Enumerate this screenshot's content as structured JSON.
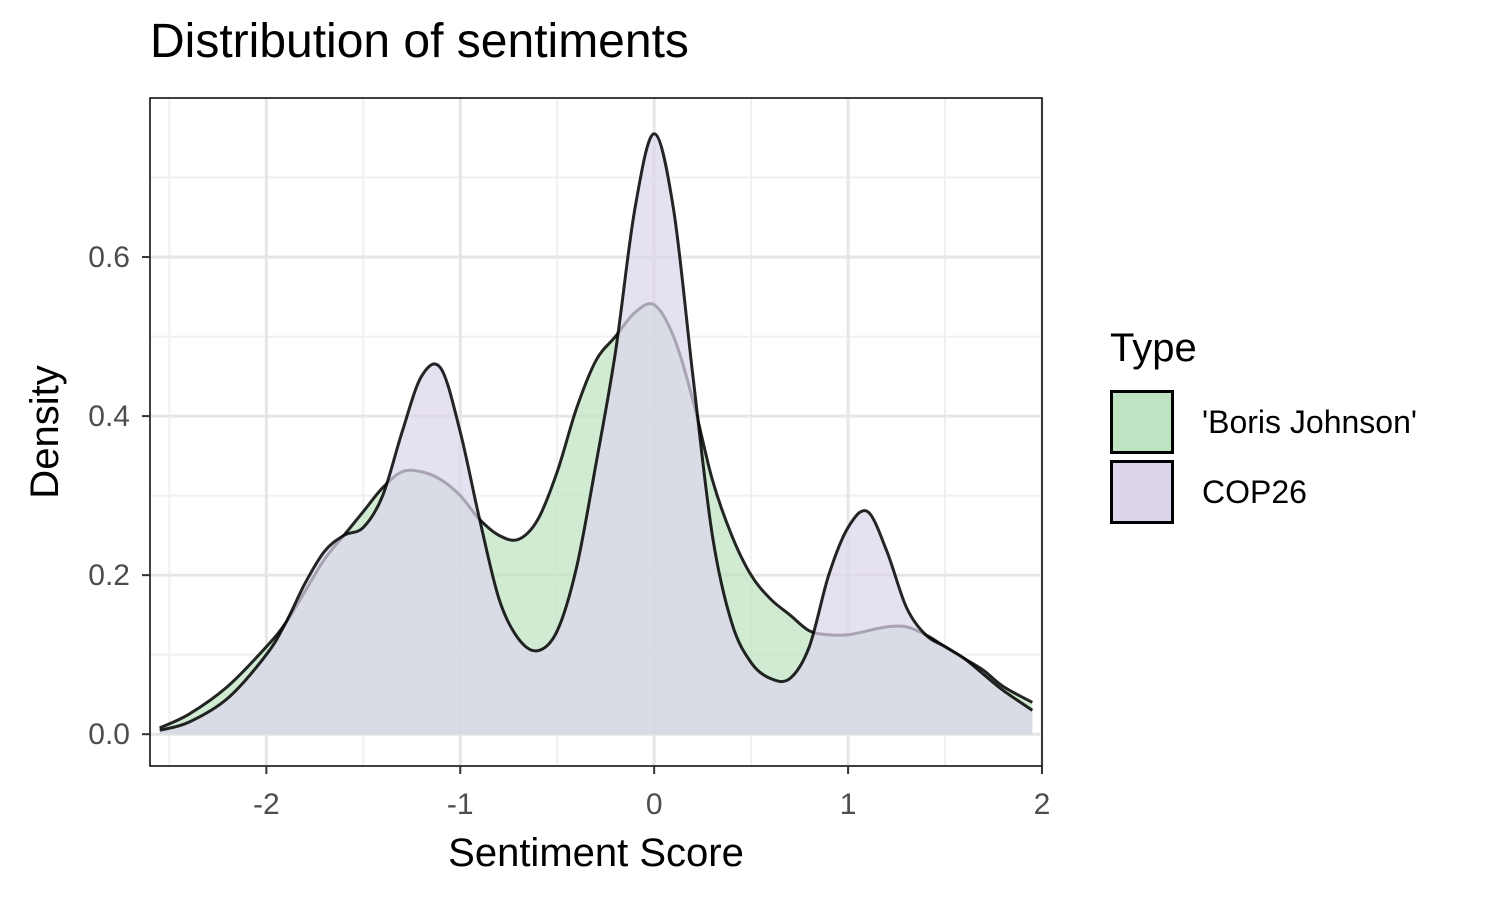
{
  "chart_data": {
    "type": "area",
    "title": "Distribution of sentiments",
    "xlabel": "Sentiment Score",
    "ylabel": "Density",
    "xlim": [
      -2.6,
      2.0
    ],
    "ylim": [
      -0.04,
      0.8
    ],
    "xticks": [
      -2,
      -1,
      0,
      1,
      2
    ],
    "xtick_labels": [
      "-2",
      "-1",
      "0",
      "1",
      "2"
    ],
    "yticks": [
      0.0,
      0.2,
      0.4,
      0.6
    ],
    "ytick_labels": [
      "0.0",
      "0.2",
      "0.4",
      "0.6"
    ],
    "grid": true,
    "legend_title": "Type",
    "legend_position": "right",
    "x": [
      -2.55,
      -2.4,
      -2.2,
      -2.0,
      -1.9,
      -1.8,
      -1.7,
      -1.6,
      -1.5,
      -1.4,
      -1.3,
      -1.2,
      -1.1,
      -1.0,
      -0.9,
      -0.8,
      -0.7,
      -0.6,
      -0.5,
      -0.4,
      -0.3,
      -0.2,
      -0.1,
      0.0,
      0.1,
      0.2,
      0.3,
      0.4,
      0.5,
      0.6,
      0.7,
      0.8,
      0.9,
      1.0,
      1.1,
      1.2,
      1.3,
      1.4,
      1.5,
      1.6,
      1.7,
      1.8,
      1.95
    ],
    "series": [
      {
        "name": "'Boris Johnson'",
        "color": "#bfe3c2",
        "values": [
          0.008,
          0.025,
          0.06,
          0.11,
          0.14,
          0.18,
          0.22,
          0.25,
          0.28,
          0.31,
          0.33,
          0.33,
          0.32,
          0.3,
          0.27,
          0.25,
          0.245,
          0.27,
          0.33,
          0.41,
          0.47,
          0.5,
          0.53,
          0.54,
          0.5,
          0.42,
          0.32,
          0.25,
          0.2,
          0.17,
          0.15,
          0.13,
          0.125,
          0.125,
          0.13,
          0.135,
          0.135,
          0.125,
          0.11,
          0.095,
          0.08,
          0.06,
          0.04
        ]
      },
      {
        "name": "COP26",
        "color": "#ddd6ea",
        "values": [
          0.005,
          0.015,
          0.045,
          0.1,
          0.14,
          0.19,
          0.23,
          0.25,
          0.26,
          0.3,
          0.38,
          0.45,
          0.46,
          0.38,
          0.27,
          0.17,
          0.12,
          0.105,
          0.13,
          0.21,
          0.34,
          0.48,
          0.66,
          0.755,
          0.66,
          0.45,
          0.25,
          0.14,
          0.09,
          0.07,
          0.07,
          0.11,
          0.2,
          0.26,
          0.28,
          0.23,
          0.16,
          0.125,
          0.11,
          0.095,
          0.075,
          0.055,
          0.03
        ]
      }
    ]
  }
}
